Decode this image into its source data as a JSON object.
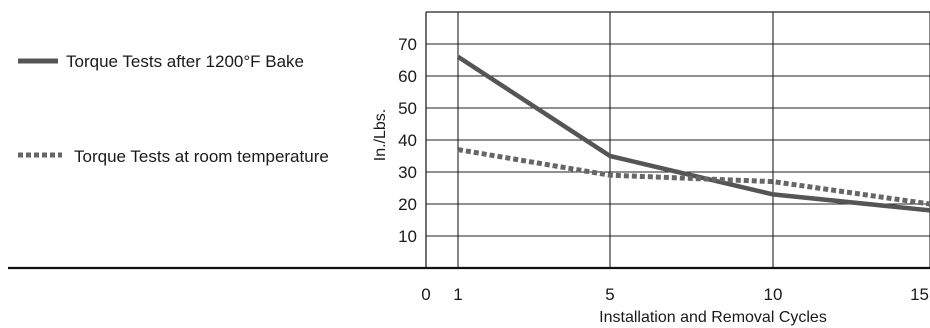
{
  "chart_data": {
    "type": "line",
    "xlabel": "Installation and Removal Cycles",
    "ylabel": "In./Lbs.",
    "x_ticks": [
      "0",
      "1",
      "5",
      "10",
      "15"
    ],
    "y_ticks": [
      "10",
      "20",
      "30",
      "40",
      "50",
      "60",
      "70"
    ],
    "xlim": [
      0,
      15
    ],
    "ylim": [
      0,
      80
    ],
    "grid": true,
    "legend_position": "left",
    "series": [
      {
        "name": "Torque Tests after 1200°F Bake",
        "style": "solid",
        "color": "#555555",
        "points": [
          [
            1,
            66
          ],
          [
            5,
            35
          ],
          [
            10,
            23
          ],
          [
            15,
            18
          ]
        ]
      },
      {
        "name": "Torque Tests at room temperature",
        "style": "dotted",
        "color": "#666666",
        "points": [
          [
            1,
            37
          ],
          [
            5,
            29
          ],
          [
            10,
            27
          ],
          [
            15,
            20
          ]
        ]
      }
    ]
  }
}
